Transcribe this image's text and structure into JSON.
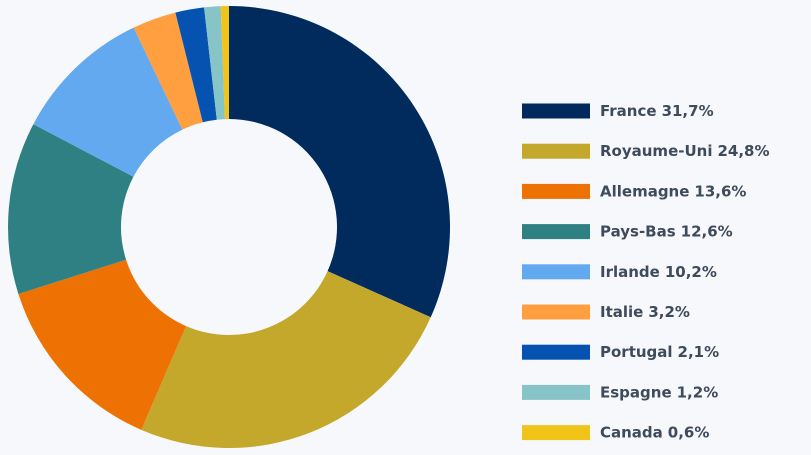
{
  "chart_data": {
    "type": "pie",
    "donut": true,
    "categories": [
      "France",
      "Royaume-Uni",
      "Allemagne",
      "Pays-Bas",
      "Irlande",
      "Italie",
      "Portugal",
      "Espagne",
      "Canada"
    ],
    "values": [
      31.7,
      24.8,
      13.6,
      12.6,
      10.2,
      3.2,
      2.1,
      1.2,
      0.6
    ],
    "value_labels": [
      "31,7%",
      "24,8%",
      "13,6%",
      "12,6%",
      "10,2%",
      "3,2%",
      "2,1%",
      "1,2%",
      "0,6%"
    ],
    "colors": [
      "#002b5c",
      "#c4a82b",
      "#ee7203",
      "#2f8083",
      "#63a9ef",
      "#ff9f40",
      "#0652b0",
      "#86c4c8",
      "#f0c419"
    ],
    "legend": "right"
  }
}
